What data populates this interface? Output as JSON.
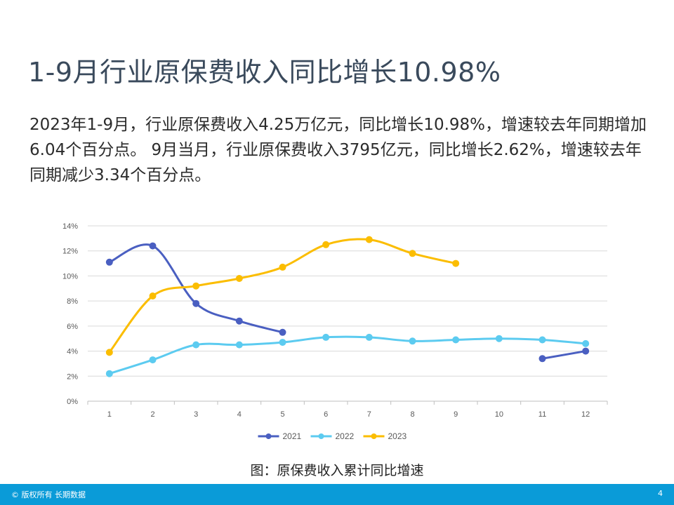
{
  "slide": {
    "title": "1-9月行业原保费收入同比增长10.98%",
    "paragraph": "2023年1-9月，行业原保费收入4.25万亿元，同比增长10.98%，增速较去年同期增加6.04个百分点。 9月当月，行业原保费收入3795亿元，同比增长2.62%，增速较去年同期减少3.34个百分点。",
    "caption": "图：原保费收入累计同比增速",
    "footer_copyright": "© 版权所有 长期数据",
    "page_number": "4"
  },
  "chart_data": {
    "type": "line",
    "title": "",
    "xlabel": "",
    "ylabel": "",
    "categories": [
      "1",
      "2",
      "3",
      "4",
      "5",
      "6",
      "7",
      "8",
      "9",
      "10",
      "11",
      "12"
    ],
    "ylim": [
      0,
      14
    ],
    "yticks": [
      "0%",
      "2%",
      "4%",
      "6%",
      "8%",
      "10%",
      "12%",
      "14%"
    ],
    "grid": true,
    "legend_position": "bottom",
    "smooth": true,
    "series": [
      {
        "name": "2021",
        "color": "#4a5fc1",
        "segments": [
          [
            [
              1,
              11.1
            ],
            [
              2,
              12.4
            ],
            [
              3,
              7.8
            ],
            [
              4,
              6.4
            ],
            [
              5,
              5.5
            ]
          ],
          [
            [
              11,
              3.4
            ],
            [
              12,
              4.0
            ]
          ]
        ]
      },
      {
        "name": "2022",
        "color": "#5ccbf0",
        "segments": [
          [
            [
              1,
              2.2
            ],
            [
              2,
              3.3
            ],
            [
              3,
              4.5
            ],
            [
              4,
              4.5
            ],
            [
              5,
              4.7
            ],
            [
              6,
              5.1
            ],
            [
              7,
              5.1
            ],
            [
              8,
              4.8
            ],
            [
              9,
              4.9
            ],
            [
              10,
              5.0
            ],
            [
              11,
              4.9
            ],
            [
              12,
              4.6
            ]
          ]
        ]
      },
      {
        "name": "2023",
        "color": "#fbbd00",
        "segments": [
          [
            [
              1,
              3.9
            ],
            [
              2,
              8.4
            ],
            [
              3,
              9.2
            ],
            [
              4,
              9.8
            ],
            [
              5,
              10.7
            ],
            [
              6,
              12.5
            ],
            [
              7,
              12.9
            ],
            [
              8,
              11.8
            ],
            [
              9,
              11.0
            ]
          ]
        ]
      }
    ]
  }
}
